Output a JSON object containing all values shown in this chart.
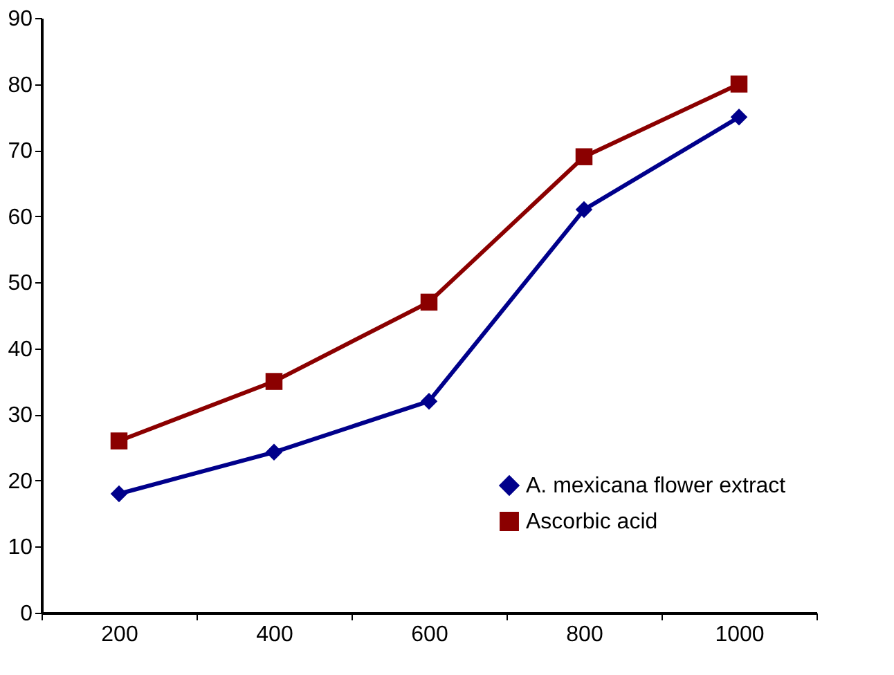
{
  "chart_data": {
    "type": "line",
    "categories": [
      "200",
      "400",
      "600",
      "800",
      "1000"
    ],
    "series": [
      {
        "name": "A. mexicana flower extract",
        "color": "#00008b",
        "marker": "diamond",
        "values": [
          18,
          24.3,
          32,
          61,
          75
        ]
      },
      {
        "name": "Ascorbic acid",
        "color": "#8b0000",
        "marker": "square",
        "values": [
          26,
          35,
          47,
          69,
          80
        ]
      }
    ],
    "ylim": [
      0,
      90
    ],
    "yticks": [
      0,
      10,
      20,
      30,
      40,
      50,
      60,
      70,
      80,
      90
    ],
    "grid": false,
    "legend": "bottom right",
    "line_style": "solid"
  }
}
